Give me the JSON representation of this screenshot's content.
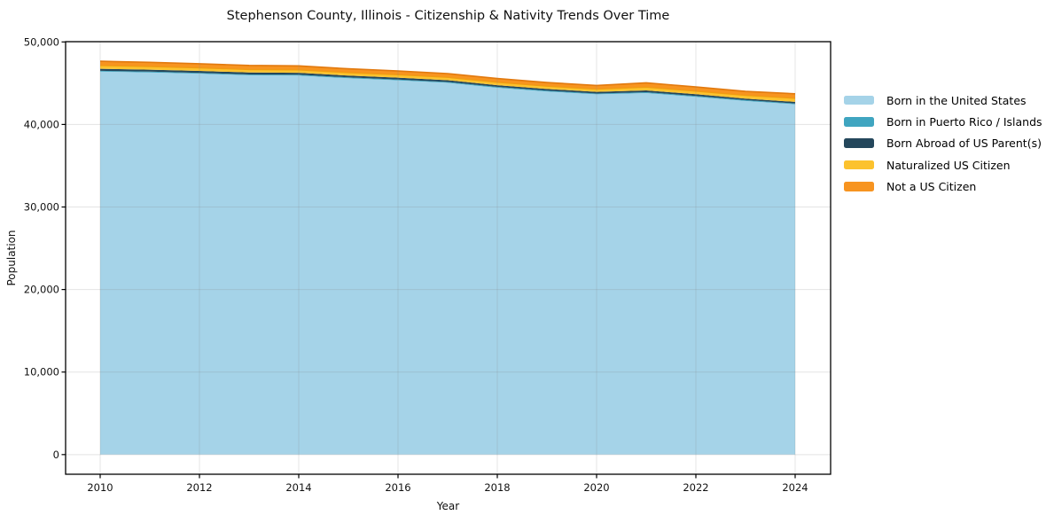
{
  "title": "Stephenson County, Illinois - Citizenship & Nativity Trends Over Time",
  "chart_data": {
    "type": "area",
    "stacked": true,
    "title": "Stephenson County, Illinois - Citizenship & Nativity Trends Over Time",
    "xlabel": "Year",
    "ylabel": "Population",
    "x": [
      2010,
      2011,
      2012,
      2013,
      2014,
      2015,
      2016,
      2017,
      2018,
      2019,
      2020,
      2021,
      2022,
      2023,
      2024
    ],
    "series": [
      {
        "name": "Born in the United States",
        "color": "#a5d3e8",
        "values": [
          46400,
          46300,
          46150,
          45960,
          45930,
          45600,
          45350,
          45050,
          44450,
          44000,
          43650,
          43800,
          43350,
          42850,
          42450
        ]
      },
      {
        "name": "Born in Puerto Rico / Islands",
        "color": "#3fa5c0",
        "values": [
          100,
          100,
          100,
          100,
          100,
          100,
          100,
          100,
          100,
          100,
          100,
          110,
          110,
          100,
          100
        ]
      },
      {
        "name": "Born Abroad of US Parent(s)",
        "color": "#24475c",
        "values": [
          250,
          240,
          240,
          230,
          230,
          220,
          220,
          210,
          210,
          200,
          200,
          210,
          200,
          190,
          190
        ]
      },
      {
        "name": "Naturalized US Citizen",
        "color": "#fcc22e",
        "values": [
          380,
          370,
          360,
          360,
          350,
          350,
          340,
          340,
          340,
          330,
          330,
          390,
          370,
          380,
          420
        ]
      },
      {
        "name": "Not a US Citizen",
        "color": "#f79420",
        "values": [
          530,
          520,
          510,
          500,
          490,
          480,
          470,
          470,
          460,
          450,
          450,
          540,
          510,
          490,
          560
        ]
      }
    ],
    "xticks": [
      2010,
      2012,
      2014,
      2016,
      2018,
      2020,
      2022,
      2024
    ],
    "yticks": [
      0,
      10000,
      20000,
      30000,
      40000,
      50000
    ],
    "ytick_labels": [
      "0",
      "10,000",
      "20,000",
      "30,000",
      "40,000",
      "50,000"
    ],
    "xlim": [
      2009.3,
      2024.7
    ],
    "ylim": [
      -2382,
      50032
    ],
    "grid": true,
    "legend_position": "right-outside",
    "colors": {
      "spine": "#000000",
      "grid": "rgba(130,130,130,0.22)",
      "total_edge": "#e2790e",
      "yellow_edge": "#f09c10",
      "background": "#ffffff"
    }
  }
}
